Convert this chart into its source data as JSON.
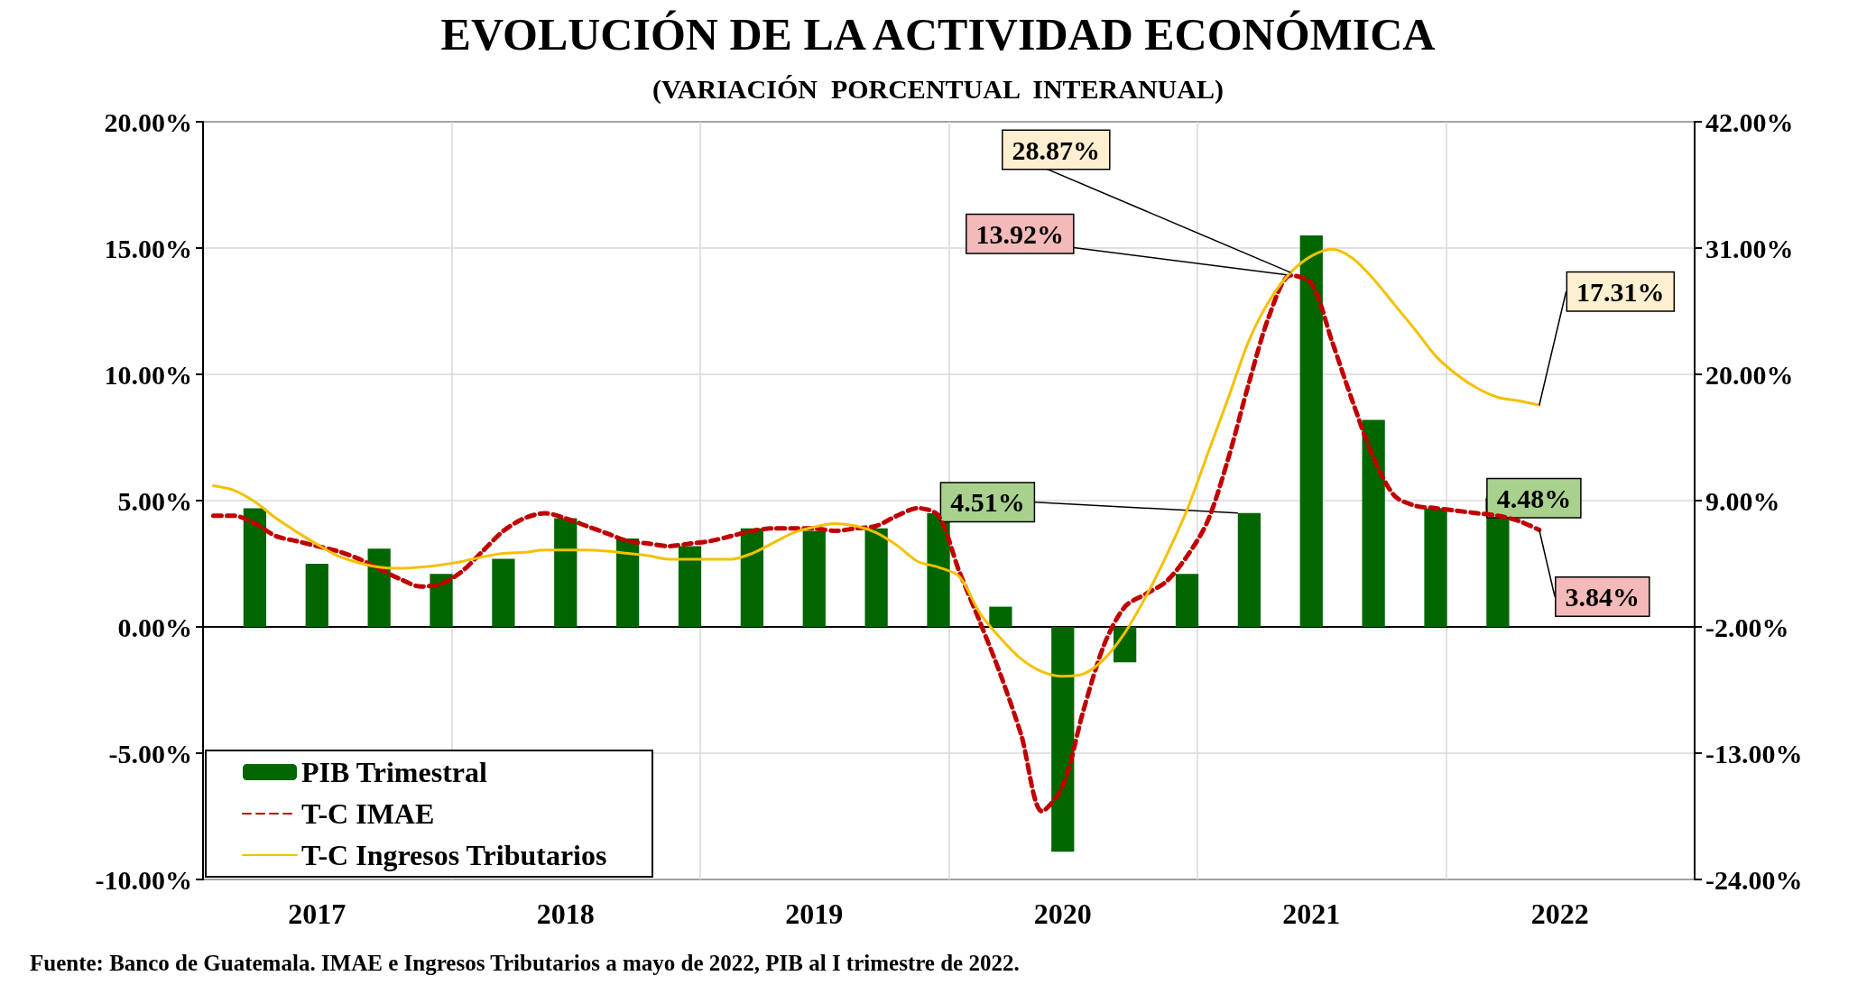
{
  "chart_data": {
    "type": "bar",
    "title": "EVOLUCIÓN DE LA ACTIVIDAD ECONÓMICA",
    "subtitle": "(VARIACIÓN  PORCENTUAL  INTERANUAL)",
    "annotations": [
      "Fuente: Banco de Guatemala. IMAE e Ingresos Tributarios a mayo de 2022, PIB al I trimestre de 2022."
    ],
    "categories": [
      null,
      null,
      null,
      null,
      null,
      "2017",
      null,
      null,
      null,
      null,
      null,
      null,
      null,
      null,
      null,
      null,
      null,
      "2018",
      null,
      null,
      null,
      null,
      null,
      null,
      null,
      null,
      null,
      null,
      null,
      "2019",
      null,
      null,
      null,
      null,
      null,
      null,
      null,
      null,
      null,
      null,
      null,
      "2020",
      null,
      null,
      null,
      null,
      null,
      null,
      null,
      null,
      null,
      null,
      null,
      "2021",
      null,
      null,
      null,
      null,
      null,
      null,
      null,
      null,
      null,
      null,
      null,
      "2022",
      null,
      null,
      null,
      null,
      null,
      null
    ],
    "series": [
      {
        "name": "PIB Trimestral",
        "color": "#006600",
        "values": [
          null,
          null,
          4.7,
          null,
          null,
          2.5,
          null,
          null,
          3.1,
          null,
          null,
          2.1,
          null,
          null,
          2.7,
          null,
          null,
          4.3,
          null,
          null,
          3.5,
          null,
          null,
          3.2,
          null,
          null,
          3.9,
          null,
          null,
          3.8,
          null,
          null,
          3.9,
          null,
          null,
          4.5,
          null,
          null,
          0.8,
          null,
          null,
          -8.9,
          null,
          null,
          -1.4,
          null,
          null,
          2.1,
          null,
          null,
          4.51,
          null,
          null,
          15.5,
          null,
          null,
          8.2,
          null,
          null,
          4.7,
          null,
          null,
          4.48,
          null,
          null,
          null,
          null,
          null,
          null,
          null,
          null,
          null
        ],
        "value_labels": [
          null,
          null,
          null,
          null,
          null,
          null,
          null,
          null,
          null,
          null,
          null,
          null,
          null,
          null,
          null,
          null,
          null,
          null,
          null,
          null,
          null,
          null,
          null,
          null,
          null,
          null,
          null,
          null,
          null,
          null,
          null,
          null,
          null,
          null,
          null,
          null,
          null,
          null,
          null,
          null,
          null,
          null,
          null,
          null,
          null,
          null,
          null,
          null,
          null,
          null,
          "4.51%",
          null,
          null,
          null,
          null,
          null,
          null,
          null,
          null,
          null,
          null,
          null,
          "4.48%",
          null,
          null,
          null,
          null,
          null,
          null,
          null,
          null,
          null
        ]
      },
      {
        "name": "T-C IMAE",
        "type": "line",
        "line_style": "dashed",
        "color": "#c00000",
        "values": [
          4.4,
          4.4,
          4.1,
          3.6,
          3.4,
          3.2,
          3.0,
          2.7,
          2.3,
          1.9,
          1.6,
          1.7,
          2.2,
          3.0,
          3.8,
          4.3,
          4.5,
          4.3,
          4.0,
          3.7,
          3.4,
          3.3,
          3.2,
          3.3,
          3.4,
          3.6,
          3.8,
          3.9,
          3.9,
          3.9,
          3.8,
          3.9,
          4.0,
          4.4,
          4.7,
          4.4,
          2.2,
          0.2,
          -1.9,
          -4.3,
          -7.3,
          -6.3,
          -3.3,
          -0.7,
          0.8,
          1.3,
          1.8,
          2.8,
          4.2,
          6.7,
          9.7,
          12.4,
          13.92,
          13.6,
          11.3,
          8.9,
          6.7,
          5.2,
          4.8,
          4.7,
          4.6,
          4.5,
          4.4,
          4.2,
          3.84,
          null,
          null,
          null,
          null,
          null,
          null,
          null
        ],
        "value_labels": [
          null,
          null,
          null,
          null,
          null,
          null,
          null,
          null,
          null,
          null,
          null,
          null,
          null,
          null,
          null,
          null,
          null,
          null,
          null,
          null,
          null,
          null,
          null,
          null,
          null,
          null,
          null,
          null,
          null,
          null,
          null,
          null,
          null,
          null,
          null,
          null,
          null,
          null,
          null,
          null,
          null,
          null,
          null,
          null,
          null,
          null,
          null,
          null,
          null,
          null,
          null,
          null,
          "13.92%",
          null,
          null,
          null,
          null,
          null,
          null,
          null,
          null,
          null,
          null,
          null,
          "3.84%",
          null,
          null,
          null,
          null,
          null,
          null,
          null
        ]
      },
      {
        "name": "T-C Ingresos Tributarios",
        "type": "line",
        "line_style": "solid",
        "axis": "y2",
        "color": "#f5c000",
        "values": [
          10.3,
          9.9,
          8.9,
          7.5,
          6.3,
          5.2,
          4.2,
          3.6,
          3.2,
          3.1,
          3.2,
          3.4,
          3.7,
          4.1,
          4.4,
          4.5,
          4.7,
          4.7,
          4.7,
          4.6,
          4.4,
          4.2,
          3.9,
          3.9,
          3.9,
          3.9,
          4.4,
          5.3,
          6.2,
          6.7,
          7.0,
          6.8,
          6.2,
          5.1,
          3.7,
          3.2,
          2.4,
          -0.8,
          -3.0,
          -4.8,
          -5.9,
          -6.3,
          -6.1,
          -4.8,
          -2.5,
          0.6,
          4.2,
          8.2,
          13.1,
          18.0,
          23.0,
          26.5,
          28.87,
          30.3,
          30.9,
          30.1,
          28.3,
          26.1,
          23.9,
          21.6,
          20.0,
          18.8,
          18.0,
          17.7,
          17.31,
          null,
          null,
          null,
          null,
          null,
          null,
          null
        ],
        "value_labels": [
          null,
          null,
          null,
          null,
          null,
          null,
          null,
          null,
          null,
          null,
          null,
          null,
          null,
          null,
          null,
          null,
          null,
          null,
          null,
          null,
          null,
          null,
          null,
          null,
          null,
          null,
          null,
          null,
          null,
          null,
          null,
          null,
          null,
          null,
          null,
          null,
          null,
          null,
          null,
          null,
          null,
          null,
          null,
          null,
          null,
          null,
          null,
          null,
          null,
          null,
          null,
          null,
          "28.87%",
          null,
          null,
          null,
          null,
          null,
          null,
          null,
          null,
          null,
          null,
          null,
          "17.31%",
          null,
          null,
          null,
          null,
          null,
          null,
          null
        ]
      }
    ],
    "ylim": [
      -10,
      20
    ],
    "yticks": [
      {
        "value": -10,
        "label": "-10.00%"
      },
      {
        "value": -5,
        "label": "-5.00%"
      },
      {
        "value": 0,
        "label": "0.00%"
      },
      {
        "value": 5,
        "label": "5.00%"
      },
      {
        "value": 10,
        "label": "10.00%"
      },
      {
        "value": 15,
        "label": "15.00%"
      },
      {
        "value": 20,
        "label": "20.00%"
      }
    ],
    "y2lim": [
      -24,
      42
    ],
    "y2ticks": [
      {
        "value": -24,
        "label": "-24.00%"
      },
      {
        "value": -13,
        "label": "-13.00%"
      },
      {
        "value": -2,
        "label": "-2.00%"
      },
      {
        "value": 9,
        "label": "9.00%"
      },
      {
        "value": 20,
        "label": "20.00%"
      },
      {
        "value": 31,
        "label": "31.00%"
      },
      {
        "value": 42,
        "label": "42.00%"
      }
    ],
    "grid": true,
    "legend": "bottom left",
    "marker": "none"
  }
}
